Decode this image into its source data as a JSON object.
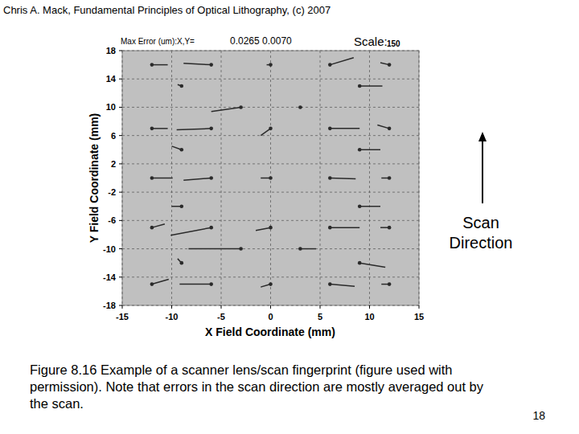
{
  "header": "Chris A. Mack, Fundamental Principles of Optical Lithography, (c) 2007",
  "chart_data": {
    "type": "quiver",
    "x_label": "X Field Coordinate (mm)",
    "y_label": "Y Field Coordinate (mm)",
    "annotations": [
      "Max Error (um):X,Y=",
      "0.0265 0.0070",
      "Scale:",
      "150"
    ],
    "scan_direction": [
      "Scan",
      "Direction"
    ],
    "x": [
      -12,
      -6,
      0,
      6,
      12,
      -9,
      9,
      -3,
      3,
      -12,
      -6,
      0,
      6,
      12,
      -9,
      9,
      -12,
      -6,
      0,
      6,
      12,
      -9,
      9,
      -12,
      -6,
      0,
      6,
      12,
      -3,
      3,
      -9,
      9,
      -12,
      -6,
      0,
      6,
      12
    ],
    "y": [
      16,
      16,
      16,
      16,
      16,
      13,
      13,
      10,
      10,
      7,
      7,
      7,
      7,
      7,
      4,
      4,
      0,
      0,
      0,
      0,
      0,
      -4,
      -4,
      -7,
      -7,
      -7,
      -7,
      -7,
      -10,
      -10,
      -12,
      -12,
      -15,
      -15,
      -15,
      -15,
      -15
    ],
    "u": [
      1.6,
      -2.8,
      -0.4,
      2.4,
      -0.9,
      -0.4,
      2.3,
      -3.0,
      0.2,
      1.6,
      -3.5,
      -1.0,
      3.0,
      -1.2,
      -1.0,
      2.1,
      2.1,
      -2.8,
      -1.0,
      2.6,
      -0.8,
      -1.0,
      2.1,
      1.3,
      -4.1,
      -1.5,
      3.0,
      -0.9,
      -5.3,
      1.6,
      -0.4,
      2.6,
      1.7,
      -3.2,
      -1.0,
      2.5,
      -0.8
    ],
    "v": [
      0,
      0.2,
      0,
      1.0,
      0.3,
      0.2,
      0,
      -0.6,
      0,
      0,
      -0.2,
      -1.0,
      0,
      0.5,
      0.5,
      0,
      0,
      -0.3,
      0,
      -0.1,
      0,
      0,
      0,
      0.5,
      -1.1,
      -0.4,
      0,
      0,
      0,
      0,
      0.6,
      -0.6,
      0.7,
      0,
      -0.4,
      -0.3,
      0
    ],
    "xlim": [
      -15,
      15
    ],
    "ylim": [
      -18,
      18
    ],
    "xticks": [
      -15,
      -10,
      -5,
      0,
      5,
      10,
      15
    ],
    "yticks": [
      -18,
      -14,
      -10,
      -6,
      -2,
      2,
      6,
      10,
      14,
      18
    ],
    "grid": true,
    "color": "#2a2a2a"
  },
  "caption": [
    "Figure 8.16  Example of a scanner lens/scan fingerprint (figure used with",
    "permission).  Note that errors in the scan direction are mostly averaged out by",
    "the scan."
  ],
  "page_number": "18"
}
